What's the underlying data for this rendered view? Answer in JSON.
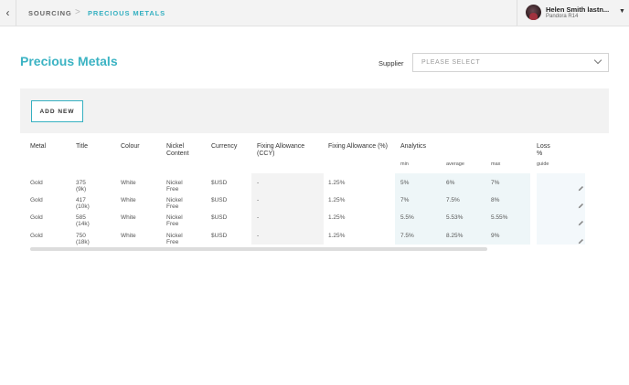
{
  "header": {
    "back_glyph": "‹",
    "breadcrumb": [
      "SOURCING",
      "PRECIOUS METALS"
    ],
    "breadcrumb_separator": ">",
    "user_name": "Helen Smith lastn...",
    "user_subtitle": "Pandora R14",
    "user_menu_glyph": "▼"
  },
  "page": {
    "title": "Precious Metals",
    "supplier_label": "Supplier",
    "supplier_placeholder": "PLEASE SELECT",
    "add_button": "ADD NEW"
  },
  "colors": {
    "accent": "#35b0c1",
    "title": "#3bb3c3",
    "fixing_ccy_bg": "#f3f3f3",
    "analytics_bg": "#eef6f8",
    "loss_bg": "#f3f8fb"
  },
  "table": {
    "headers": {
      "metal": "Metal",
      "title": "Title",
      "colour": "Colour",
      "nickel": "Nickel Content",
      "currency": "Currency",
      "fixing_ccy": "Fixing Allowance (CCY)",
      "fixing_pct": "Fixing Allowance (%)",
      "analytics": "Analytics",
      "loss": "Loss %"
    },
    "subheaders": {
      "min": "min",
      "average": "average",
      "max": "max",
      "guide": "guide"
    },
    "rows": [
      {
        "metal": "Gold",
        "title": "375 (9k)",
        "colour": "White",
        "nickel": "Nickel Free",
        "currency": "$USD",
        "fixing_ccy": "-",
        "fixing_pct": "1.25%",
        "min": "5%",
        "average": "6%",
        "max": "7%",
        "guide": ""
      },
      {
        "metal": "Gold",
        "title": "417 (10k)",
        "colour": "White",
        "nickel": "Nickel Free",
        "currency": "$USD",
        "fixing_ccy": "-",
        "fixing_pct": "1.25%",
        "min": "7%",
        "average": "7.5%",
        "max": "8%",
        "guide": ""
      },
      {
        "metal": "Gold",
        "title": "585 (14k)",
        "colour": "White",
        "nickel": "Nickel Free",
        "currency": "$USD",
        "fixing_ccy": "-",
        "fixing_pct": "1.25%",
        "min": "5.5%",
        "average": "5.53%",
        "max": "5.55%",
        "guide": ""
      },
      {
        "metal": "Gold",
        "title": "750 (18k)",
        "colour": "White",
        "nickel": "Nickel Free",
        "currency": "$USD",
        "fixing_ccy": "-",
        "fixing_pct": "1.25%",
        "min": "7.5%",
        "average": "8.25%",
        "max": "9%",
        "guide": ""
      }
    ],
    "edit_icon": "pencil-icon"
  }
}
